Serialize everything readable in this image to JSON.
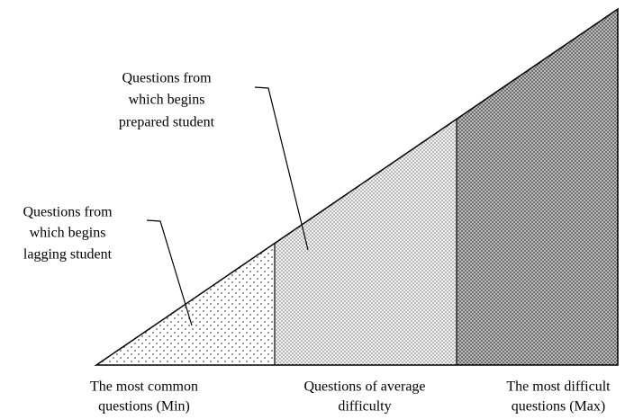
{
  "annotations": [
    {
      "lines": [
        "Questions from",
        "which begins",
        "prepared student"
      ]
    },
    {
      "lines": [
        "Questions from",
        "which begins",
        "lagging student"
      ]
    }
  ],
  "levels": [
    {
      "lines": [
        "The most common",
        "questions (Min)"
      ]
    },
    {
      "lines": [
        "Questions of average",
        "difficulty"
      ]
    },
    {
      "lines": [
        "The most difficult",
        "questions (Max)"
      ]
    }
  ]
}
